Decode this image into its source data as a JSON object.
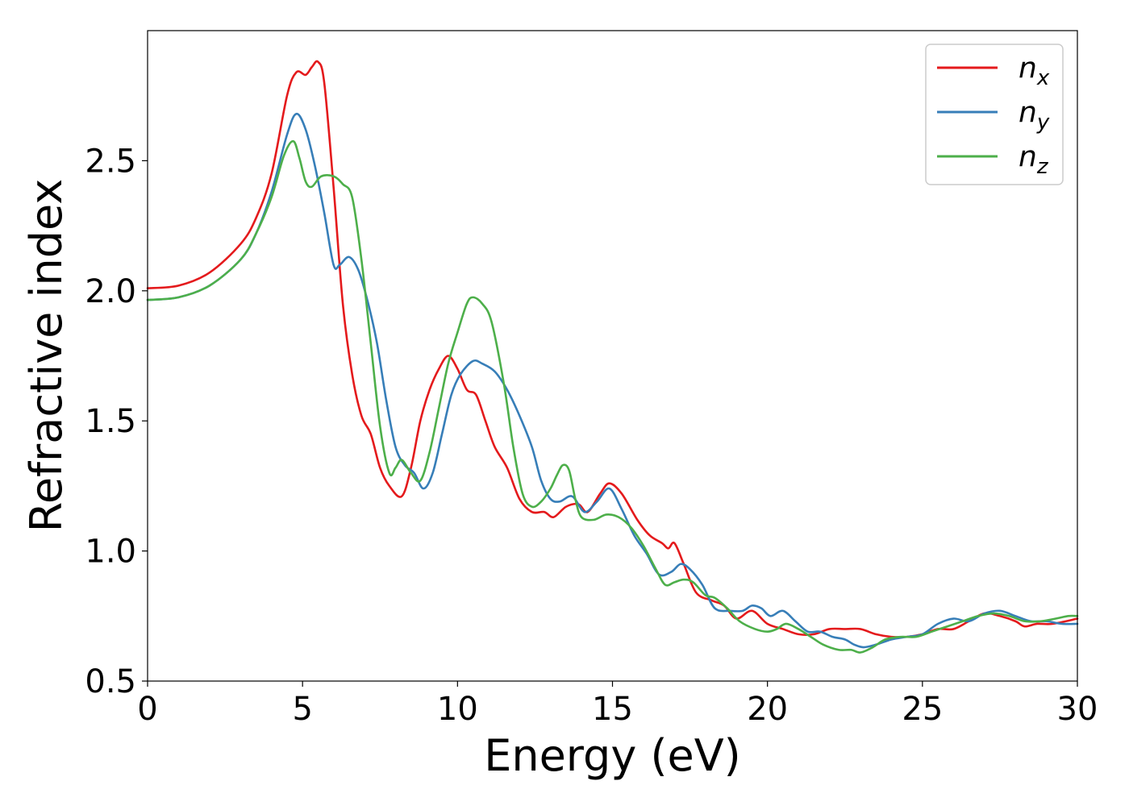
{
  "chart_data": {
    "type": "line",
    "xlabel": "Energy (eV)",
    "ylabel": "Refractive index",
    "xlim": [
      0,
      30
    ],
    "ylim": [
      0.5,
      3.0
    ],
    "xticks": [
      "0",
      "5",
      "10",
      "15",
      "20",
      "25",
      "30"
    ],
    "yticks": [
      "0.5",
      "1.0",
      "1.5",
      "2.0",
      "2.5"
    ],
    "grid": false,
    "legend_position": "top-right",
    "series": [
      {
        "name": "n",
        "subscript": "x",
        "color": "#e41a1c",
        "points": [
          [
            0,
            2.01
          ],
          [
            1,
            2.02
          ],
          [
            2,
            2.07
          ],
          [
            3,
            2.18
          ],
          [
            3.5,
            2.28
          ],
          [
            4,
            2.45
          ],
          [
            4.5,
            2.75
          ],
          [
            4.8,
            2.84
          ],
          [
            5.1,
            2.83
          ],
          [
            5.3,
            2.86
          ],
          [
            5.5,
            2.88
          ],
          [
            5.7,
            2.8
          ],
          [
            6.0,
            2.4
          ],
          [
            6.3,
            1.95
          ],
          [
            6.6,
            1.68
          ],
          [
            6.9,
            1.52
          ],
          [
            7.2,
            1.45
          ],
          [
            7.5,
            1.32
          ],
          [
            7.8,
            1.25
          ],
          [
            8.2,
            1.21
          ],
          [
            8.5,
            1.32
          ],
          [
            8.8,
            1.5
          ],
          [
            9.1,
            1.62
          ],
          [
            9.4,
            1.7
          ],
          [
            9.7,
            1.75
          ],
          [
            10.0,
            1.7
          ],
          [
            10.3,
            1.62
          ],
          [
            10.6,
            1.6
          ],
          [
            10.9,
            1.5
          ],
          [
            11.2,
            1.4
          ],
          [
            11.6,
            1.32
          ],
          [
            12.0,
            1.2
          ],
          [
            12.4,
            1.15
          ],
          [
            12.8,
            1.15
          ],
          [
            13.1,
            1.13
          ],
          [
            13.5,
            1.17
          ],
          [
            13.9,
            1.18
          ],
          [
            14.2,
            1.15
          ],
          [
            14.6,
            1.22
          ],
          [
            14.9,
            1.26
          ],
          [
            15.3,
            1.22
          ],
          [
            15.8,
            1.12
          ],
          [
            16.2,
            1.06
          ],
          [
            16.6,
            1.03
          ],
          [
            16.8,
            1.01
          ],
          [
            17.0,
            1.03
          ],
          [
            17.3,
            0.95
          ],
          [
            17.7,
            0.84
          ],
          [
            18.2,
            0.81
          ],
          [
            18.6,
            0.79
          ],
          [
            19.0,
            0.74
          ],
          [
            19.5,
            0.77
          ],
          [
            20.0,
            0.72
          ],
          [
            20.5,
            0.7
          ],
          [
            21.0,
            0.68
          ],
          [
            21.5,
            0.68
          ],
          [
            22.0,
            0.7
          ],
          [
            22.5,
            0.7
          ],
          [
            23.0,
            0.7
          ],
          [
            23.5,
            0.68
          ],
          [
            24.0,
            0.67
          ],
          [
            24.5,
            0.67
          ],
          [
            25.0,
            0.68
          ],
          [
            25.5,
            0.7
          ],
          [
            26.0,
            0.7
          ],
          [
            26.5,
            0.73
          ],
          [
            27.0,
            0.76
          ],
          [
            27.5,
            0.75
          ],
          [
            28.0,
            0.73
          ],
          [
            28.3,
            0.71
          ],
          [
            28.7,
            0.72
          ],
          [
            29.2,
            0.72
          ],
          [
            30.0,
            0.74
          ]
        ]
      },
      {
        "name": "n",
        "subscript": "y",
        "color": "#377eb8",
        "points": [
          [
            0,
            1.965
          ],
          [
            1,
            1.975
          ],
          [
            2,
            2.02
          ],
          [
            3,
            2.12
          ],
          [
            3.5,
            2.22
          ],
          [
            4,
            2.38
          ],
          [
            4.5,
            2.6
          ],
          [
            4.8,
            2.68
          ],
          [
            5.1,
            2.62
          ],
          [
            5.4,
            2.48
          ],
          [
            5.7,
            2.3
          ],
          [
            6.0,
            2.1
          ],
          [
            6.2,
            2.1
          ],
          [
            6.5,
            2.13
          ],
          [
            6.8,
            2.08
          ],
          [
            7.1,
            1.96
          ],
          [
            7.4,
            1.8
          ],
          [
            7.7,
            1.58
          ],
          [
            8.0,
            1.4
          ],
          [
            8.3,
            1.33
          ],
          [
            8.6,
            1.3
          ],
          [
            8.9,
            1.24
          ],
          [
            9.2,
            1.3
          ],
          [
            9.5,
            1.45
          ],
          [
            9.8,
            1.6
          ],
          [
            10.1,
            1.68
          ],
          [
            10.5,
            1.73
          ],
          [
            10.8,
            1.72
          ],
          [
            11.2,
            1.69
          ],
          [
            11.6,
            1.62
          ],
          [
            12.0,
            1.52
          ],
          [
            12.4,
            1.4
          ],
          [
            12.7,
            1.27
          ],
          [
            13.0,
            1.2
          ],
          [
            13.3,
            1.19
          ],
          [
            13.7,
            1.21
          ],
          [
            14.1,
            1.15
          ],
          [
            14.5,
            1.19
          ],
          [
            14.9,
            1.24
          ],
          [
            15.3,
            1.16
          ],
          [
            15.7,
            1.06
          ],
          [
            16.1,
            0.99
          ],
          [
            16.5,
            0.91
          ],
          [
            16.9,
            0.92
          ],
          [
            17.2,
            0.95
          ],
          [
            17.5,
            0.93
          ],
          [
            17.9,
            0.87
          ],
          [
            18.3,
            0.78
          ],
          [
            18.8,
            0.77
          ],
          [
            19.2,
            0.77
          ],
          [
            19.5,
            0.79
          ],
          [
            19.8,
            0.78
          ],
          [
            20.1,
            0.75
          ],
          [
            20.5,
            0.77
          ],
          [
            20.9,
            0.73
          ],
          [
            21.3,
            0.69
          ],
          [
            21.7,
            0.69
          ],
          [
            22.1,
            0.67
          ],
          [
            22.5,
            0.66
          ],
          [
            22.8,
            0.64
          ],
          [
            23.1,
            0.63
          ],
          [
            23.5,
            0.64
          ],
          [
            24.0,
            0.66
          ],
          [
            24.5,
            0.67
          ],
          [
            25.0,
            0.68
          ],
          [
            25.5,
            0.72
          ],
          [
            26.0,
            0.74
          ],
          [
            26.5,
            0.73
          ],
          [
            27.0,
            0.76
          ],
          [
            27.5,
            0.77
          ],
          [
            28.0,
            0.75
          ],
          [
            28.5,
            0.73
          ],
          [
            29.0,
            0.73
          ],
          [
            29.5,
            0.72
          ],
          [
            30.0,
            0.72
          ]
        ]
      },
      {
        "name": "n",
        "subscript": "z",
        "color": "#4daf4a",
        "points": [
          [
            0,
            1.965
          ],
          [
            1,
            1.975
          ],
          [
            2,
            2.02
          ],
          [
            3,
            2.12
          ],
          [
            3.5,
            2.22
          ],
          [
            4,
            2.36
          ],
          [
            4.4,
            2.52
          ],
          [
            4.7,
            2.575
          ],
          [
            4.9,
            2.51
          ],
          [
            5.1,
            2.42
          ],
          [
            5.3,
            2.4
          ],
          [
            5.6,
            2.44
          ],
          [
            6.0,
            2.44
          ],
          [
            6.3,
            2.41
          ],
          [
            6.6,
            2.36
          ],
          [
            6.9,
            2.12
          ],
          [
            7.2,
            1.8
          ],
          [
            7.5,
            1.48
          ],
          [
            7.8,
            1.3
          ],
          [
            8.0,
            1.32
          ],
          [
            8.2,
            1.35
          ],
          [
            8.5,
            1.3
          ],
          [
            8.8,
            1.27
          ],
          [
            9.1,
            1.38
          ],
          [
            9.4,
            1.55
          ],
          [
            9.7,
            1.72
          ],
          [
            10.0,
            1.84
          ],
          [
            10.3,
            1.95
          ],
          [
            10.5,
            1.975
          ],
          [
            10.8,
            1.95
          ],
          [
            11.1,
            1.88
          ],
          [
            11.5,
            1.64
          ],
          [
            11.8,
            1.4
          ],
          [
            12.1,
            1.22
          ],
          [
            12.4,
            1.17
          ],
          [
            12.7,
            1.19
          ],
          [
            13.0,
            1.24
          ],
          [
            13.2,
            1.29
          ],
          [
            13.4,
            1.33
          ],
          [
            13.6,
            1.31
          ],
          [
            13.8,
            1.2
          ],
          [
            14.0,
            1.13
          ],
          [
            14.4,
            1.12
          ],
          [
            14.8,
            1.14
          ],
          [
            15.2,
            1.13
          ],
          [
            15.6,
            1.09
          ],
          [
            16.0,
            1.02
          ],
          [
            16.4,
            0.93
          ],
          [
            16.7,
            0.87
          ],
          [
            17.0,
            0.88
          ],
          [
            17.3,
            0.89
          ],
          [
            17.6,
            0.88
          ],
          [
            18.0,
            0.83
          ],
          [
            18.3,
            0.82
          ],
          [
            18.7,
            0.78
          ],
          [
            19.1,
            0.73
          ],
          [
            19.6,
            0.7
          ],
          [
            20.0,
            0.69
          ],
          [
            20.3,
            0.7
          ],
          [
            20.6,
            0.72
          ],
          [
            21.0,
            0.7
          ],
          [
            21.4,
            0.67
          ],
          [
            21.8,
            0.64
          ],
          [
            22.3,
            0.62
          ],
          [
            22.7,
            0.62
          ],
          [
            23.0,
            0.61
          ],
          [
            23.4,
            0.63
          ],
          [
            23.8,
            0.66
          ],
          [
            24.3,
            0.67
          ],
          [
            24.8,
            0.67
          ],
          [
            25.3,
            0.69
          ],
          [
            25.8,
            0.71
          ],
          [
            26.3,
            0.73
          ],
          [
            26.8,
            0.75
          ],
          [
            27.3,
            0.76
          ],
          [
            27.8,
            0.75
          ],
          [
            28.3,
            0.73
          ],
          [
            28.8,
            0.73
          ],
          [
            29.3,
            0.74
          ],
          [
            29.7,
            0.75
          ],
          [
            30.0,
            0.75
          ]
        ]
      }
    ]
  }
}
